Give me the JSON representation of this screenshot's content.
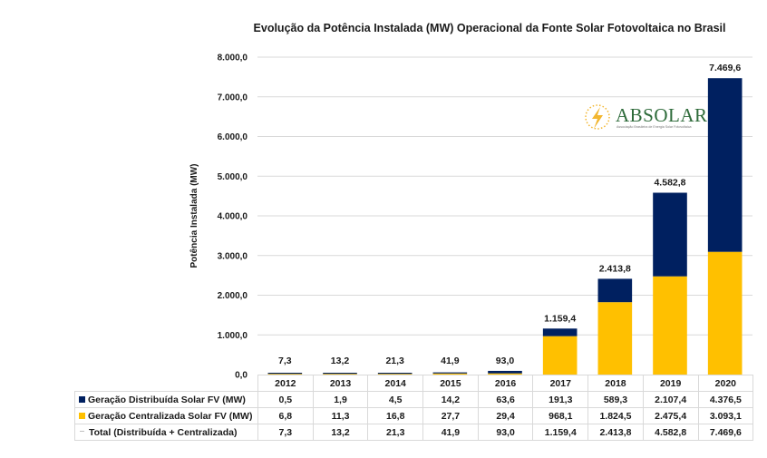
{
  "chart_data": {
    "type": "bar",
    "stacked": true,
    "title": "Evolução da Potência Instalada (MW) Operacional da Fonte Solar Fotovoltaica no Brasil",
    "xlabel": "",
    "ylabel": "Potência Instalada (MW)",
    "ylim": [
      0,
      8000
    ],
    "yticks": [
      0,
      1000,
      2000,
      3000,
      4000,
      5000,
      6000,
      7000,
      8000
    ],
    "ytick_labels": [
      "0,0",
      "1.000,0",
      "2.000,0",
      "3.000,0",
      "4.000,0",
      "5.000,0",
      "6.000,0",
      "7.000,0",
      "8.000,0"
    ],
    "grid": true,
    "legend": "table-below",
    "categories": [
      "2012",
      "2013",
      "2014",
      "2015",
      "2016",
      "2017",
      "2018",
      "2019",
      "2020"
    ],
    "series": [
      {
        "name": "Geração Centralizada Solar FV (MW)",
        "color": "#FFC000",
        "values": [
          6.8,
          11.3,
          16.8,
          27.7,
          29.4,
          968.1,
          1824.5,
          2475.4,
          3093.1
        ],
        "labels": [
          "6,8",
          "11,3",
          "16,8",
          "27,7",
          "29,4",
          "968,1",
          "1.824,5",
          "2.475,4",
          "3.093,1"
        ]
      },
      {
        "name": "Geração Distribuída Solar FV (MW)",
        "color": "#002060",
        "values": [
          0.5,
          1.9,
          4.5,
          14.2,
          63.6,
          191.3,
          589.3,
          2107.4,
          4376.5
        ],
        "labels": [
          "0,5",
          "1,9",
          "4,5",
          "14,2",
          "63,6",
          "191,3",
          "589,3",
          "2.107,4",
          "4.376,5"
        ]
      },
      {
        "name": "Total (Distribuída + Centralizada)",
        "color": "#BFBFBF",
        "values": [
          7.3,
          13.2,
          21.3,
          41.9,
          93.0,
          1159.4,
          2413.8,
          4582.8,
          7469.6
        ],
        "labels": [
          "7,3",
          "13,2",
          "21,3",
          "41,9",
          "93,0",
          "1.159,4",
          "2.413,8",
          "4.582,8",
          "7.469,6"
        ]
      }
    ]
  },
  "table": {
    "rows": [
      {
        "label": "Geração Distribuída Solar FV (MW)",
        "marker": "square",
        "color": "#002060",
        "series_index": 1
      },
      {
        "label": "Geração Centralizada Solar FV (MW)",
        "marker": "square",
        "color": "#FFC000",
        "series_index": 0
      },
      {
        "label": "Total (Distribuída + Centralizada)",
        "marker": "dash",
        "color": "#BFBFBF",
        "series_index": 2
      }
    ]
  },
  "logo": {
    "name": "ABSOLAR",
    "subtitle": "Associação Brasileira de Energia Solar Fotovoltaica",
    "icon": "lightning-bolt-sun-icon"
  }
}
